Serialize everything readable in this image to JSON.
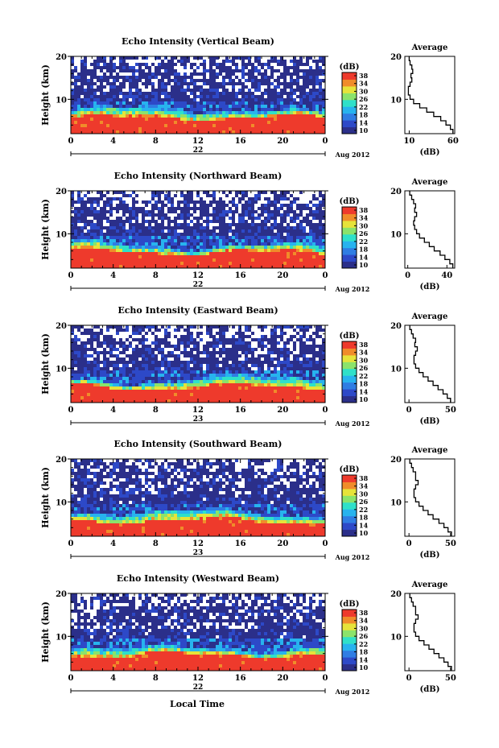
{
  "page": {
    "background": "#ffffff",
    "footer": "Local Time"
  },
  "colorbar": {
    "unit": "(dB)",
    "ticks": [
      "10",
      "14",
      "18",
      "22",
      "26",
      "30",
      "34",
      "38"
    ],
    "colors": [
      "#2b2f8a",
      "#2d49c8",
      "#2f7de3",
      "#27b3ee",
      "#2fe0c9",
      "#8be36b",
      "#e6e33a",
      "#f08c2a",
      "#ee3a2c"
    ]
  },
  "chart_data": [
    {
      "type": "heatmap",
      "title": "Echo Intensity (Vertical Beam)",
      "ylabel": "Height (km)",
      "x_ticks": [
        "0",
        "4",
        "8",
        "12",
        "16",
        "20",
        "0"
      ],
      "date_day": "22",
      "date_label": "Aug 2012",
      "xlim": [
        0,
        24
      ],
      "ylim": [
        2,
        20
      ],
      "y_ticks": [
        "20",
        "10"
      ],
      "profile": {
        "title": "Average",
        "xlabel": "(dB)",
        "x_ticks": [
          "10",
          "60"
        ],
        "xlim": [
          5,
          62
        ],
        "heights": [
          2.5,
          3.5,
          4.5,
          5.5,
          6.5,
          7.5,
          8.5,
          9.5,
          10.5,
          11.5,
          12.5,
          13.5,
          14.5,
          15.5,
          16.5,
          17.5,
          18.5,
          19.5
        ],
        "values": [
          60,
          57,
          52,
          46,
          38,
          30,
          22,
          15,
          11,
          9,
          9,
          11,
          13,
          12,
          14,
          13,
          11,
          10
        ]
      }
    },
    {
      "type": "heatmap",
      "title": "Echo Intensity (Northward Beam)",
      "ylabel": "Height (km)",
      "x_ticks": [
        "0",
        "4",
        "8",
        "12",
        "16",
        "20",
        "0"
      ],
      "date_day": "22",
      "date_label": "Aug 2012",
      "xlim": [
        0,
        24
      ],
      "ylim": [
        2,
        20
      ],
      "y_ticks": [
        "20",
        "10"
      ],
      "profile": {
        "title": "Average",
        "xlabel": "(dB)",
        "x_ticks": [
          "0",
          "40"
        ],
        "xlim": [
          -3,
          48
        ],
        "heights": [
          2.5,
          3.5,
          4.5,
          5.5,
          6.5,
          7.5,
          8.5,
          9.5,
          10.5,
          11.5,
          12.5,
          13.5,
          14.5,
          15.5,
          16.5,
          17.5,
          18.5,
          19.5
        ],
        "values": [
          46,
          43,
          38,
          33,
          27,
          22,
          17,
          12,
          9,
          7,
          6,
          7,
          9,
          7,
          8,
          6,
          4,
          2
        ]
      }
    },
    {
      "type": "heatmap",
      "title": "Echo Intensity (Eastward Beam)",
      "ylabel": "Height (km)",
      "x_ticks": [
        "0",
        "4",
        "8",
        "12",
        "16",
        "20",
        "0"
      ],
      "date_day": "23",
      "date_label": "Aug 2012",
      "xlim": [
        0,
        24
      ],
      "ylim": [
        2,
        20
      ],
      "y_ticks": [
        "20",
        "10"
      ],
      "profile": {
        "title": "Average",
        "xlabel": "(dB)",
        "x_ticks": [
          "0",
          "50"
        ],
        "xlim": [
          -5,
          55
        ],
        "heights": [
          2.5,
          3.5,
          4.5,
          5.5,
          6.5,
          7.5,
          8.5,
          9.5,
          10.5,
          11.5,
          12.5,
          13.5,
          14.5,
          15.5,
          16.5,
          17.5,
          18.5,
          19.5
        ],
        "values": [
          50,
          46,
          41,
          35,
          29,
          23,
          17,
          12,
          8,
          6,
          6,
          8,
          10,
          7,
          8,
          5,
          3,
          1
        ]
      }
    },
    {
      "type": "heatmap",
      "title": "Echo Intensity (Southward Beam)",
      "ylabel": "Height (km)",
      "x_ticks": [
        "0",
        "4",
        "8",
        "12",
        "16",
        "20",
        "0"
      ],
      "date_day": "23",
      "date_label": "Aug 2012",
      "xlim": [
        0,
        24
      ],
      "ylim": [
        2,
        20
      ],
      "y_ticks": [
        "20",
        "10"
      ],
      "profile": {
        "title": "Average",
        "xlabel": "(dB)",
        "x_ticks": [
          "0",
          "50"
        ],
        "xlim": [
          -5,
          55
        ],
        "heights": [
          2.5,
          3.5,
          4.5,
          5.5,
          6.5,
          7.5,
          8.5,
          9.5,
          10.5,
          11.5,
          12.5,
          13.5,
          14.5,
          15.5,
          16.5,
          17.5,
          18.5,
          19.5
        ],
        "values": [
          51,
          47,
          42,
          36,
          29,
          23,
          17,
          12,
          8,
          6,
          6,
          8,
          11,
          8,
          8,
          5,
          3,
          1
        ]
      }
    },
    {
      "type": "heatmap",
      "title": "Echo Intensity (Westward Beam)",
      "ylabel": "Height (km)",
      "x_ticks": [
        "0",
        "4",
        "8",
        "12",
        "16",
        "20",
        "0"
      ],
      "date_day": "22",
      "date_label": "Aug 2012",
      "xlim": [
        0,
        24
      ],
      "ylim": [
        2,
        20
      ],
      "y_ticks": [
        "20",
        "10"
      ],
      "profile": {
        "title": "Average",
        "xlabel": "(dB)",
        "x_ticks": [
          "0",
          "50"
        ],
        "xlim": [
          -5,
          55
        ],
        "heights": [
          2.5,
          3.5,
          4.5,
          5.5,
          6.5,
          7.5,
          8.5,
          9.5,
          10.5,
          11.5,
          12.5,
          13.5,
          14.5,
          15.5,
          16.5,
          17.5,
          18.5,
          19.5
        ],
        "values": [
          51,
          47,
          42,
          36,
          30,
          24,
          18,
          12,
          8,
          6,
          6,
          8,
          11,
          8,
          8,
          5,
          3,
          1
        ]
      }
    }
  ]
}
